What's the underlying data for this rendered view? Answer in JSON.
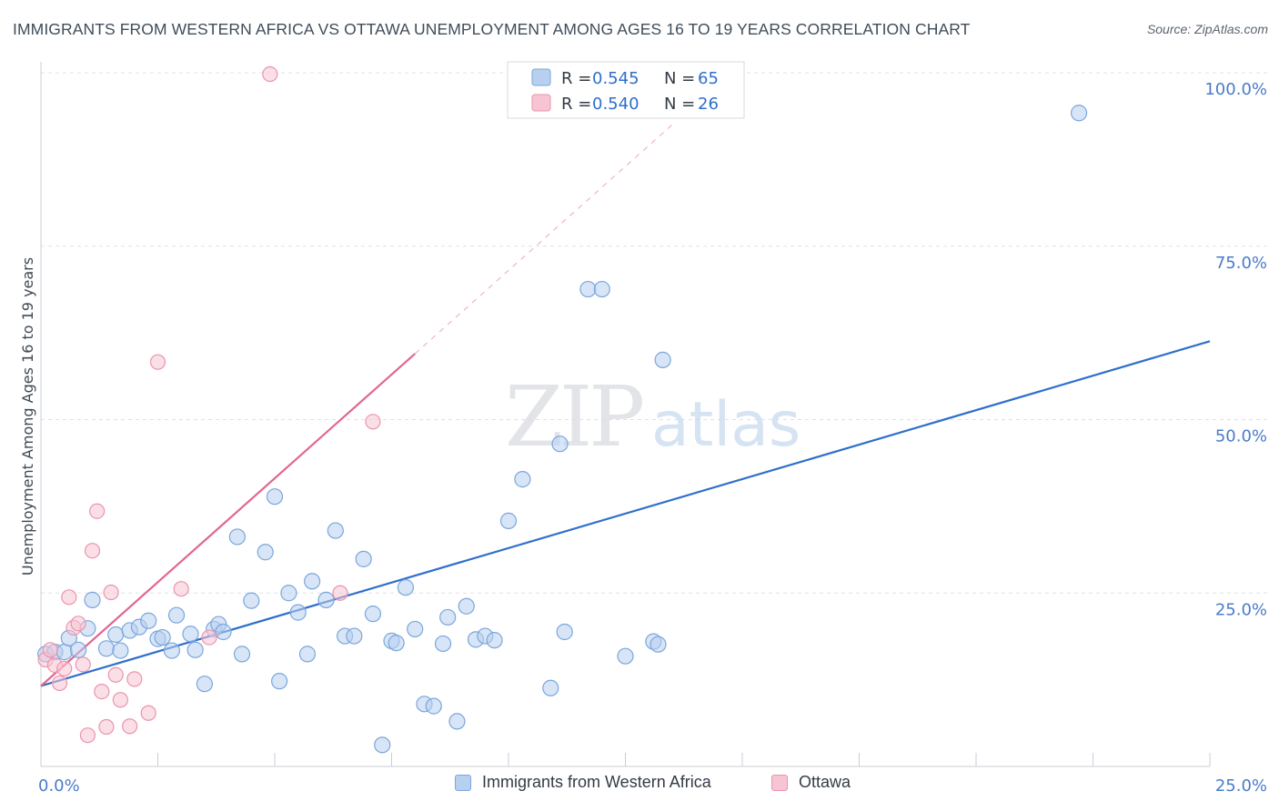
{
  "header": {
    "title": "IMMIGRANTS FROM WESTERN AFRICA VS OTTAWA UNEMPLOYMENT AMONG AGES 16 TO 19 YEARS CORRELATION CHART",
    "source_prefix": "Source: ",
    "source_name": "ZipAtlas.com"
  },
  "watermark": {
    "zip": "ZIP",
    "atlas": "atlas"
  },
  "colors": {
    "blue_fill": "#b8d0f0",
    "blue_stroke": "#7aa6dc",
    "blue_line": "#2f6fcb",
    "pink_fill": "#f7c4d3",
    "pink_stroke": "#eb93ae",
    "pink_line": "#e36790",
    "axis_text": "#4a7cc9",
    "grid": "#dde2e8"
  },
  "legend": {
    "rows": [
      {
        "r_label": "R = ",
        "r_value": "0.545",
        "n_label": "N = ",
        "n_value": "65"
      },
      {
        "r_label": "R = ",
        "r_value": "0.540",
        "n_label": "N = ",
        "n_value": "26"
      }
    ]
  },
  "bottom_legend": {
    "series1": "Immigrants from Western Africa",
    "series2": "Ottawa"
  },
  "chart_data": {
    "type": "scatter",
    "title": "IMMIGRANTS FROM WESTERN AFRICA VS OTTAWA UNEMPLOYMENT AMONG AGES 16 TO 19 YEARS CORRELATION CHART",
    "xlabel": "",
    "ylabel": "Unemployment Among Ages 16 to 19 years",
    "xlim": [
      0,
      25
    ],
    "ylim": [
      0,
      100
    ],
    "x_tick_labels": [
      "0.0%",
      "25.0%"
    ],
    "y_tick_labels": [
      "25.0%",
      "50.0%",
      "75.0%",
      "100.0%"
    ],
    "y_ticks": [
      25,
      50,
      75,
      100
    ],
    "grid": true,
    "legend_placement": "top-center",
    "series": [
      {
        "name": "Immigrants from Western Africa",
        "r": 0.545,
        "n": 65,
        "trend": {
          "x": [
            0,
            25
          ],
          "y": [
            11.6,
            61.3
          ]
        },
        "points": [
          [
            0.1,
            16.2
          ],
          [
            0.3,
            16.5
          ],
          [
            0.5,
            16.5
          ],
          [
            0.6,
            18.5
          ],
          [
            0.8,
            16.8
          ],
          [
            1.0,
            19.9
          ],
          [
            1.1,
            24.0
          ],
          [
            1.4,
            17.0
          ],
          [
            1.6,
            19.0
          ],
          [
            1.7,
            16.7
          ],
          [
            1.9,
            19.6
          ],
          [
            2.1,
            20.1
          ],
          [
            2.3,
            21.0
          ],
          [
            2.5,
            18.4
          ],
          [
            2.6,
            18.6
          ],
          [
            2.8,
            16.7
          ],
          [
            2.9,
            21.8
          ],
          [
            3.2,
            19.1
          ],
          [
            3.3,
            16.8
          ],
          [
            3.5,
            11.9
          ],
          [
            3.7,
            19.8
          ],
          [
            3.8,
            20.5
          ],
          [
            3.9,
            19.4
          ],
          [
            4.2,
            33.1
          ],
          [
            4.3,
            16.2
          ],
          [
            4.5,
            23.9
          ],
          [
            4.8,
            30.9
          ],
          [
            5.0,
            38.9
          ],
          [
            5.1,
            12.3
          ],
          [
            5.3,
            25.0
          ],
          [
            5.5,
            22.2
          ],
          [
            5.7,
            16.2
          ],
          [
            5.8,
            26.7
          ],
          [
            6.1,
            24.0
          ],
          [
            6.3,
            34.0
          ],
          [
            6.5,
            18.8
          ],
          [
            6.7,
            18.8
          ],
          [
            6.9,
            29.9
          ],
          [
            7.1,
            22.0
          ],
          [
            7.3,
            3.1
          ],
          [
            7.5,
            18.1
          ],
          [
            7.6,
            17.8
          ],
          [
            7.8,
            25.8
          ],
          [
            8.0,
            19.8
          ],
          [
            8.2,
            9.0
          ],
          [
            8.4,
            8.7
          ],
          [
            8.6,
            17.7
          ],
          [
            8.7,
            21.5
          ],
          [
            8.9,
            6.5
          ],
          [
            9.1,
            23.1
          ],
          [
            9.3,
            18.3
          ],
          [
            9.5,
            18.8
          ],
          [
            9.7,
            18.2
          ],
          [
            10.0,
            35.4
          ],
          [
            10.3,
            41.4
          ],
          [
            10.9,
            11.3
          ],
          [
            11.1,
            46.5
          ],
          [
            11.2,
            19.4
          ],
          [
            11.7,
            68.8
          ],
          [
            12.0,
            68.8
          ],
          [
            12.5,
            15.9
          ],
          [
            13.1,
            18.0
          ],
          [
            13.2,
            17.6
          ],
          [
            13.3,
            58.6
          ],
          [
            22.2,
            94.2
          ]
        ]
      },
      {
        "name": "Ottawa",
        "r": 0.54,
        "n": 26,
        "trend": {
          "x": [
            0,
            8
          ],
          "y": [
            11.6,
            59.5
          ]
        },
        "trend_dashed": {
          "x": [
            8,
            13.5
          ],
          "y": [
            59.5,
            92.5
          ]
        },
        "points": [
          [
            0.1,
            15.4
          ],
          [
            0.3,
            14.6
          ],
          [
            0.4,
            12.0
          ],
          [
            0.5,
            14.1
          ],
          [
            0.6,
            24.4
          ],
          [
            0.7,
            20.0
          ],
          [
            0.8,
            20.6
          ],
          [
            0.9,
            14.7
          ],
          [
            1.0,
            4.5
          ],
          [
            1.1,
            31.1
          ],
          [
            1.2,
            36.8
          ],
          [
            1.3,
            10.8
          ],
          [
            1.4,
            5.7
          ],
          [
            1.5,
            25.1
          ],
          [
            1.6,
            13.2
          ],
          [
            1.7,
            9.6
          ],
          [
            1.9,
            5.8
          ],
          [
            2.0,
            12.6
          ],
          [
            2.3,
            7.7
          ],
          [
            2.5,
            58.3
          ],
          [
            3.0,
            25.6
          ],
          [
            3.6,
            18.6
          ],
          [
            4.9,
            99.8
          ],
          [
            6.4,
            25.0
          ],
          [
            7.1,
            49.7
          ],
          [
            0.2,
            16.8
          ]
        ]
      }
    ]
  }
}
